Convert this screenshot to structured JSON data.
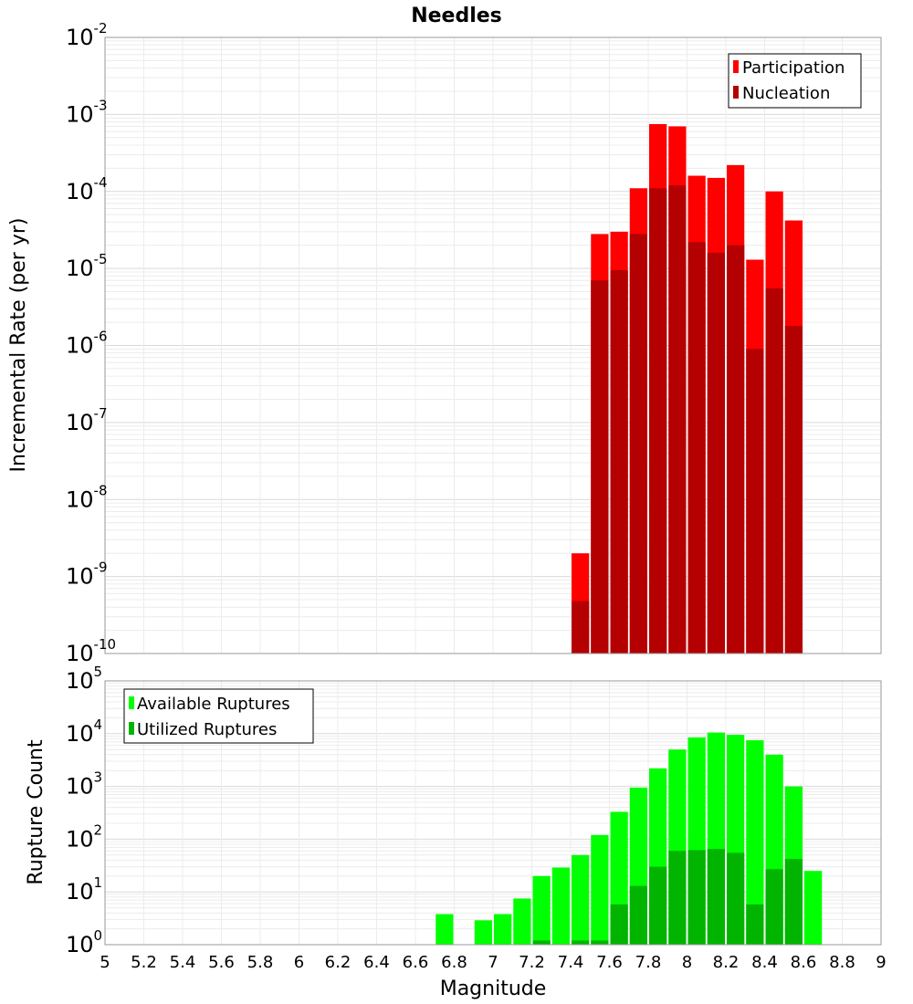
{
  "chart_data": [
    {
      "type": "bar",
      "title": "Needles",
      "xlabel": "",
      "ylabel": "Incremental Rate (per yr)",
      "xlim": [
        5,
        9
      ],
      "ylim": [
        1e-10,
        0.01
      ],
      "y_scale": "log",
      "y_tick_exponents": [
        "-2",
        "-3",
        "-4",
        "-5",
        "-6",
        "-7",
        "-8",
        "-9",
        "-10"
      ],
      "grid": true,
      "legend_placement": "top-right",
      "bin_width": 0.1,
      "x": [
        7.45,
        7.55,
        7.65,
        7.75,
        7.85,
        7.95,
        8.05,
        8.15,
        8.25,
        8.35,
        8.45,
        8.55
      ],
      "series": [
        {
          "name": "Participation",
          "color": "#ff0000",
          "values": [
            2e-09,
            2.8e-05,
            3e-05,
            0.00011,
            0.00075,
            0.0007,
            0.00016,
            0.00015,
            0.00022,
            1.3e-05,
            0.0001,
            4.2e-05
          ]
        },
        {
          "name": "Nucleation",
          "color": "#b40000",
          "values": [
            4.8e-10,
            7e-06,
            9.5e-06,
            2.8e-05,
            0.00011,
            0.00012,
            2.2e-05,
            1.6e-05,
            2e-05,
            9e-07,
            5.5e-06,
            1.8e-06
          ]
        }
      ]
    },
    {
      "type": "bar",
      "title": "",
      "xlabel": "Magnitude",
      "ylabel": "Rupture Count",
      "xlim": [
        5,
        9
      ],
      "ylim": [
        1,
        100000.0
      ],
      "y_scale": "log",
      "y_tick_exponents": [
        "5",
        "4",
        "3",
        "2",
        "1",
        "0"
      ],
      "x_ticks": [
        "5",
        "5.2",
        "5.4",
        "5.6",
        "5.8",
        "6",
        "6.2",
        "6.4",
        "6.6",
        "6.8",
        "7",
        "7.2",
        "7.4",
        "7.6",
        "7.8",
        "8",
        "8.2",
        "8.4",
        "8.6",
        "8.8",
        "9"
      ],
      "grid": true,
      "legend_placement": "top-left",
      "bin_width": 0.1,
      "series": [
        {
          "name": "Available Ruptures",
          "color": "#00ff00",
          "x": [
            6.75,
            6.95,
            7.05,
            7.15,
            7.25,
            7.35,
            7.45,
            7.55,
            7.65,
            7.75,
            7.85,
            7.95,
            8.05,
            8.15,
            8.25,
            8.35,
            8.45,
            8.55,
            8.65
          ],
          "values": [
            3.8,
            2.9,
            3.8,
            7.5,
            20,
            29,
            50,
            120,
            330,
            950,
            2200,
            5000,
            8500,
            10500,
            9500,
            7500,
            4000,
            1000,
            25
          ]
        },
        {
          "name": "Utilized Ruptures",
          "color": "#00b400",
          "x": [
            7.25,
            7.45,
            7.55,
            7.65,
            7.75,
            7.85,
            7.95,
            8.05,
            8.15,
            8.25,
            8.35,
            8.45,
            8.55
          ],
          "values": [
            1.2,
            1.2,
            1.2,
            5.8,
            13,
            30,
            60,
            62,
            65,
            55,
            5.8,
            27,
            42
          ]
        }
      ]
    }
  ]
}
